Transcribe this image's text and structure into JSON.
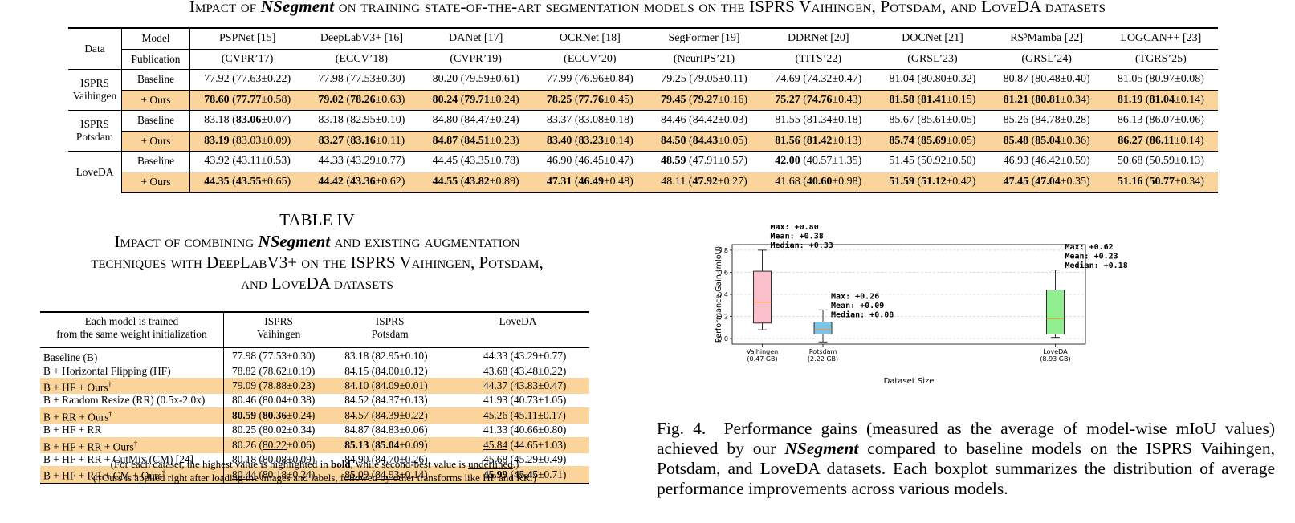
{
  "table3": {
    "caption_prefix": "Impact of",
    "caption_nseg": "NSegment",
    "caption_suffix": "on training state-of-the-art segmentation models on the ISPRS Vaihingen, Potsdam, and LoveDA datasets",
    "header_data": "Data",
    "header_model": "Model",
    "header_publication": "Publication",
    "models": [
      "PSPNet [15]",
      "DeepLabV3+ [16]",
      "DANet [17]",
      "OCRNet [18]",
      "SegFormer [19]",
      "DDRNet [20]",
      "DOCNet [21]",
      "RS³Mamba [22]",
      "LOGCAN++ [23]"
    ],
    "publications": [
      "(CVPR’17)",
      "(ECCV’18)",
      "(CVPR’19)",
      "(ECCV’20)",
      "(NeurIPS’21)",
      "(TITS’22)",
      "(GRSL’23)",
      "(GRSL’24)",
      "(TGRS’25)"
    ],
    "datasets": [
      {
        "name_line1": "ISPRS",
        "name_line2": "Vaihingen",
        "baseline_label": "Baseline",
        "ours_label": "+ Ours",
        "baseline": [
          "77.92 (77.63±0.22)",
          "77.98 (77.53±0.30)",
          "80.20 (79.59±0.61)",
          "77.99 (76.96±0.84)",
          "79.25 (79.05±0.11)",
          "74.69 (74.32±0.47)",
          "81.04 (80.80±0.32)",
          "80.87 (80.48±0.40)",
          "81.05 (80.97±0.08)"
        ],
        "ours": [
          "78.60 (77.77±0.58)",
          "79.02 (78.26±0.63)",
          "80.24 (79.71±0.24)",
          "78.25 (77.76±0.45)",
          "79.45 (79.27±0.16)",
          "75.27 (74.76±0.43)",
          "81.58 (81.41±0.15)",
          "81.21 (80.81±0.34)",
          "81.19 (81.04±0.14)"
        ]
      },
      {
        "name_line1": "ISPRS",
        "name_line2": "Potsdam",
        "baseline_label": "Baseline",
        "ours_label": "+ Ours",
        "baseline": [
          "83.18 (83.06±0.07)",
          "83.18 (82.95±0.10)",
          "84.80 (84.47±0.24)",
          "83.37 (83.08±0.18)",
          "84.46 (84.42±0.03)",
          "81.55 (81.34±0.18)",
          "85.67 (85.61±0.05)",
          "85.26 (84.78±0.28)",
          "86.13 (86.07±0.06)"
        ],
        "ours": [
          "83.19 (83.03±0.09)",
          "83.27 (83.16±0.11)",
          "84.87 (84.51±0.23)",
          "83.40 (83.23±0.14)",
          "84.50 (84.43±0.05)",
          "81.56 (81.42±0.13)",
          "85.74 (85.69±0.05)",
          "85.48 (85.04±0.36)",
          "86.27 (86.11±0.14)"
        ]
      },
      {
        "name_line1": "LoveDA",
        "name_line2": "",
        "baseline_label": "Baseline",
        "ours_label": "+ Ours",
        "baseline": [
          "43.92 (43.11±0.53)",
          "44.33 (43.29±0.77)",
          "44.45 (43.35±0.78)",
          "46.90 (46.45±0.47)",
          "48.59 (47.91±0.57)",
          "42.00 (40.57±1.35)",
          "51.45 (50.92±0.50)",
          "46.93 (46.42±0.59)",
          "50.68 (50.59±0.13)"
        ],
        "ours": [
          "44.35 (43.55±0.65)",
          "44.42 (43.36±0.62)",
          "44.55 (43.82±0.89)",
          "47.31 (46.49±0.48)",
          "48.11 (47.92±0.27)",
          "41.68 (40.60±0.98)",
          "51.59 (51.12±0.42)",
          "47.45 (47.04±0.35)",
          "51.16 (50.77±0.34)"
        ]
      }
    ]
  },
  "table4": {
    "number": "TABLE IV",
    "title_line1_prefix": "Impact of combining",
    "title_nseg": "NSegment",
    "title_line1_suffix": "and existing augmentation",
    "title_line2": "techniques with DeepLabV3+ on the ISPRS Vaihingen, Potsdam,",
    "title_line3": "and LoveDA datasets",
    "head_c1_line1": "Each model is trained",
    "head_c1_line2": "from the same weight initialization",
    "head_c2_line1": "ISPRS",
    "head_c2_line2": "Vaihingen",
    "head_c3_line1": "ISPRS",
    "head_c3_line2": "Potsdam",
    "head_c4": "LoveDA",
    "rows": [
      {
        "method": "Baseline (B)",
        "v": "77.98 (77.53±0.30)",
        "p": "83.18 (82.95±0.10)",
        "l": "44.33 (43.29±0.77)"
      },
      {
        "method": "B + Horizontal Flipping (HF)",
        "v": "78.82 (78.62±0.19)",
        "p": "84.15 (84.00±0.12)",
        "l": "43.68 (43.48±0.22)"
      },
      {
        "method": "B + HF + Ours†",
        "v": "79.09 (78.88±0.23)",
        "p": "84.10 (84.09±0.01)",
        "l": "44.37 (43.83±0.47)"
      },
      {
        "method": "B + Random Resize (RR) (0.5x-2.0x)",
        "v": "80.46 (80.04±0.38)",
        "p": "84.52 (84.37±0.13)",
        "l": "41.93 (40.73±1.05)"
      },
      {
        "method": "B + RR + Ours†",
        "v": "80.59 (80.36±0.24)",
        "p": "84.57 (84.39±0.22)",
        "l": "45.26 (45.11±0.17)"
      },
      {
        "method": "B + HF + RR",
        "v": "80.25 (80.02±0.34)",
        "p": "84.87 (84.83±0.06)",
        "l": "41.33 (40.66±0.80)"
      },
      {
        "method": "B + HF + RR + Ours†",
        "v": "80.26 (80.22±0.06)",
        "p": "85.13 (85.04±0.09)",
        "l": "45.84 (44.65±1.03)"
      },
      {
        "method": "B + HF + RR + CutMix (CM) [24]",
        "v": "80.18 (80.08±0.09)",
        "p": "84.90 (84.70±0.26)",
        "l": "45.68 (45.29±0.49)"
      },
      {
        "method": "B + HF + RR + CM + Ours†",
        "v": "80.44 (80.18±0.24)",
        "p": "85.09 (84.93±0.14)",
        "l": "45.99 (45.45±0.71)"
      }
    ],
    "note1_prefix": "(For each dataset, the highest value is highlighted in",
    "note1_bold": "bold",
    "note1_mid": ", while second-best value is",
    "note1_under": "underlined",
    "note1_end": ".)",
    "note2": "(†Ours is applied right after loading the images and labels, followed by other transforms like HF and RR.)"
  },
  "figure": {
    "caption_label": "Fig. 4.",
    "caption_text1": "Performance gains (measured as the average of model-wise mIoU values) achieved by our",
    "caption_nseg": "NSegment",
    "caption_text2": "compared to baseline models on the ISPRS Vaihingen, Potsdam, and LoveDA datasets. Each boxplot summarizes the distribution of average performance improvements across various models."
  },
  "chart_data": {
    "type": "box",
    "xlabel": "Dataset Size",
    "ylabel": "Performance Gain (mIoU)",
    "ylim": [
      -0.05,
      0.85
    ],
    "yticks": [
      "0.0",
      "0.2",
      "0.4",
      "0.6",
      "0.8"
    ],
    "grid": true,
    "groups": [
      {
        "label": "Vaihingen",
        "sublabel": "(0.47 GB)",
        "size_gb": 0.47,
        "color": "#f9c0cb",
        "whisker_low": 0.08,
        "q1": 0.14,
        "median": 0.33,
        "q3": 0.61,
        "whisker_high": 0.8,
        "ann_max": "Max: +0.80",
        "ann_mean": "Mean: +0.38",
        "ann_median": "Median: +0.33"
      },
      {
        "label": "Potsdam",
        "sublabel": "(2.22 GB)",
        "size_gb": 2.22,
        "color": "#7ec4e6",
        "whisker_low": -0.03,
        "q1": 0.04,
        "median": 0.08,
        "q3": 0.15,
        "whisker_high": 0.26,
        "ann_max": "Max: +0.26",
        "ann_mean": "Mean: +0.09",
        "ann_median": "Median: +0.08"
      },
      {
        "label": "LoveDA",
        "sublabel": "(8.93 GB)",
        "size_gb": 8.93,
        "color": "#90ee90",
        "whisker_low": 0.01,
        "q1": 0.04,
        "median": 0.18,
        "q3": 0.44,
        "whisker_high": 0.62,
        "ann_max": "Max: +0.62",
        "ann_mean": "Mean: +0.23",
        "ann_median": "Median: +0.18"
      }
    ],
    "median_color": "#ff8c1a"
  }
}
